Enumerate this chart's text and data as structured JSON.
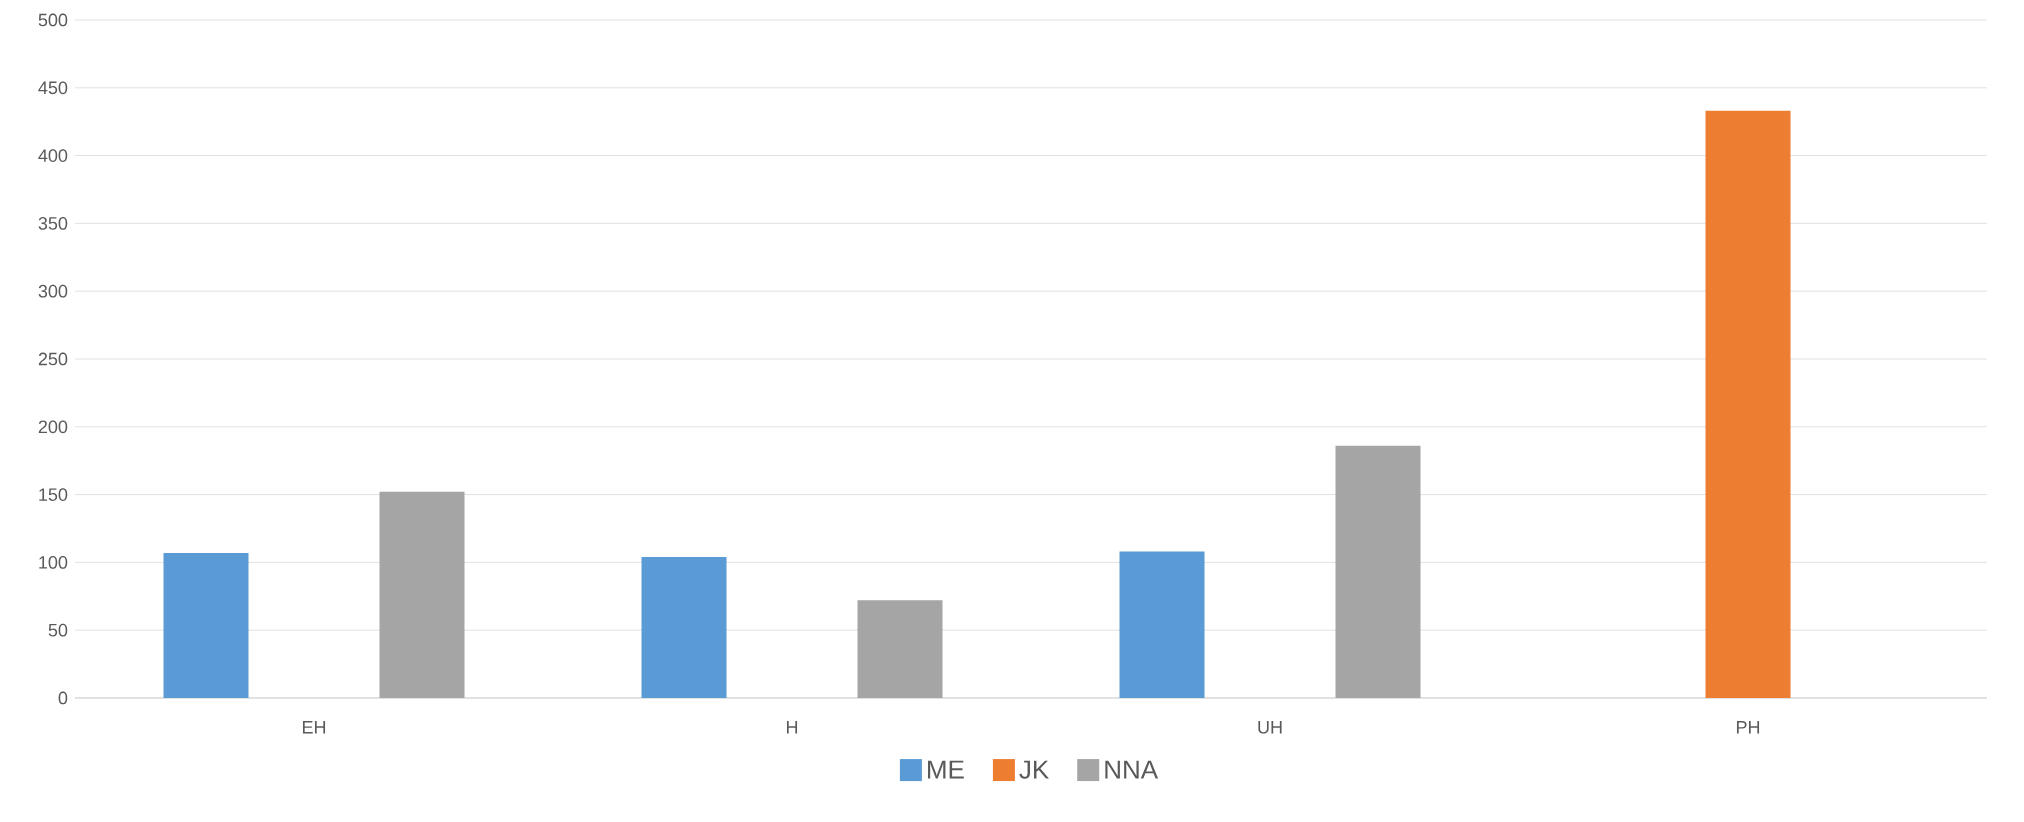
{
  "chart_data": {
    "type": "bar",
    "categories": [
      "EH",
      "H",
      "UH",
      "PH"
    ],
    "series": [
      {
        "name": "ME",
        "color": "#5b9bd5",
        "values": [
          107,
          104,
          108,
          null
        ]
      },
      {
        "name": "JK",
        "color": "#ed7d31",
        "values": [
          null,
          null,
          null,
          433
        ]
      },
      {
        "name": "NNA",
        "color": "#a5a5a5",
        "values": [
          152,
          72,
          186,
          null
        ]
      }
    ],
    "ylim": [
      0,
      500
    ],
    "yticks": [
      0,
      50,
      100,
      150,
      200,
      250,
      300,
      350,
      400,
      450,
      500
    ],
    "grid": "y",
    "legend": "bottom"
  }
}
